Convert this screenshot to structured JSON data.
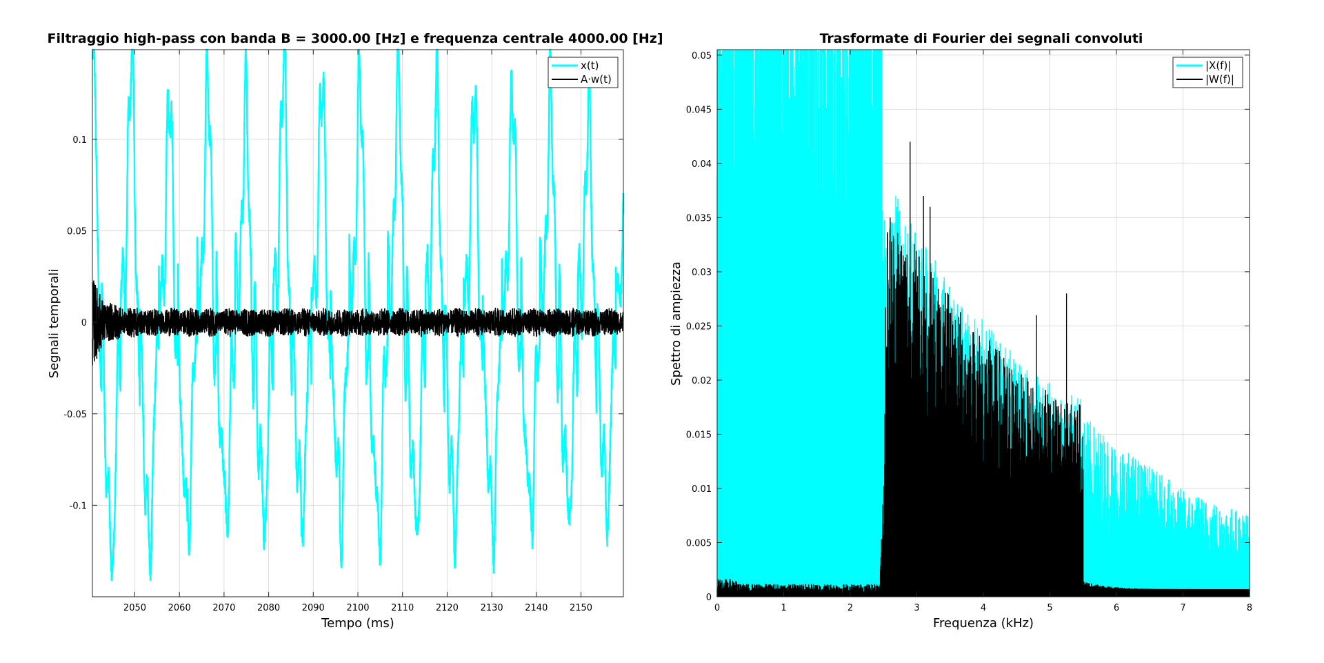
{
  "colors": {
    "x_signal": "#00ffff",
    "w_signal": "#000000",
    "grid": "#dcdcdc",
    "axes": "#262626",
    "background": "#ffffff"
  },
  "chart_data": [
    {
      "type": "line",
      "title": "Filtraggio high-pass con banda B = 3000.00 [Hz] e frequenza centrale 4000.00 [Hz]",
      "xlabel": "Tempo (ms)",
      "ylabel": "Segnali temporali",
      "xlim": [
        2040.5,
        2159.5
      ],
      "ylim": [
        -0.15,
        0.149
      ],
      "x_ticks": [
        2050,
        2060,
        2070,
        2080,
        2090,
        2100,
        2110,
        2120,
        2130,
        2140,
        2150
      ],
      "x_tick_labels": [
        "2050",
        "2060",
        "2070",
        "2080",
        "2090",
        "2100",
        "2110",
        "2120",
        "2130",
        "2140",
        "2150"
      ],
      "y_ticks": [
        -0.1,
        -0.05,
        0,
        0.05,
        0.1
      ],
      "y_tick_labels": [
        "-0.1",
        "-0.05",
        "0",
        "0.05",
        "0.1"
      ],
      "grid": true,
      "legend_position": "top-right",
      "approximate": {
        "period_ms": 8.55,
        "peak_times_ms": [
          2049.0,
          2057.5,
          2066.1,
          2074.6,
          2083.1,
          2091.7,
          2100.2,
          2108.8,
          2117.3,
          2125.8,
          2134.4,
          2142.9,
          2151.4
        ],
        "peak_values": [
          0.144,
          0.117,
          0.129,
          0.116,
          0.14,
          0.128,
          0.126,
          0.133,
          0.125,
          0.12,
          0.119,
          0.119,
          0.11
        ],
        "trough_values": [
          -0.133,
          -0.122,
          -0.105,
          -0.108,
          -0.114,
          -0.104,
          -0.115,
          -0.118,
          -0.113,
          -0.116,
          -0.114,
          -0.107,
          -0.105
        ],
        "w_envelope_start": 0.026,
        "w_envelope_typical": 0.008
      },
      "series": [
        {
          "name": "x(t)",
          "color": "#00ffff"
        },
        {
          "name": "A·w(t)",
          "color": "#000000"
        }
      ]
    },
    {
      "type": "area",
      "title": "Trasformate di Fourier dei segnali convoluti",
      "xlabel": "Frequenza (kHz)",
      "ylabel": "Spettro di ampiezza",
      "xlim": [
        0,
        8
      ],
      "ylim": [
        0,
        0.0505
      ],
      "x_ticks": [
        0,
        1,
        2,
        3,
        4,
        5,
        6,
        7,
        8
      ],
      "x_tick_labels": [
        "0",
        "1",
        "2",
        "3",
        "4",
        "5",
        "6",
        "7",
        "8"
      ],
      "y_ticks": [
        0,
        0.005,
        0.01,
        0.015,
        0.02,
        0.025,
        0.03,
        0.035,
        0.04,
        0.045,
        0.05
      ],
      "y_tick_labels": [
        "0",
        "0.005",
        "0.01",
        "0.015",
        "0.02",
        "0.025",
        "0.03",
        "0.035",
        "0.04",
        "0.045",
        "0.05"
      ],
      "grid": true,
      "legend_position": "top-right",
      "approximate": {
        "x_full_band_khz": [
          0,
          2.48
        ],
        "w_band_khz": [
          2.45,
          5.5
        ],
        "w_upper_envelope_points": [
          [
            2.5,
            0.033
          ],
          [
            2.7,
            0.034
          ],
          [
            3.0,
            0.031
          ],
          [
            3.3,
            0.028
          ],
          [
            3.7,
            0.025
          ],
          [
            4.2,
            0.022
          ],
          [
            4.7,
            0.019
          ],
          [
            5.0,
            0.018
          ],
          [
            5.3,
            0.017
          ],
          [
            5.45,
            0.017
          ]
        ],
        "w_spikes": [
          [
            2.9,
            0.042
          ],
          [
            3.2,
            0.036
          ],
          [
            3.1,
            0.037
          ],
          [
            4.8,
            0.026
          ],
          [
            5.25,
            0.028
          ],
          [
            2.6,
            0.035
          ]
        ],
        "x_tail_envelope_points": [
          [
            5.55,
            0.015
          ],
          [
            6.0,
            0.013
          ],
          [
            6.5,
            0.011
          ],
          [
            7.0,
            0.009
          ],
          [
            7.5,
            0.008
          ],
          [
            8.0,
            0.007
          ]
        ]
      },
      "series": [
        {
          "name": "|X(f)|",
          "color": "#00ffff"
        },
        {
          "name": "|W(f)|",
          "color": "#000000"
        }
      ]
    }
  ]
}
